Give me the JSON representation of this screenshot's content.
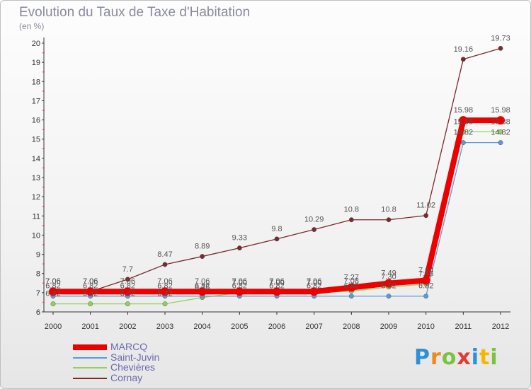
{
  "title": "Evolution du Taux de Taxe d'Habitation",
  "subtitle": "(en %)",
  "logo": {
    "text": "Proxiti",
    "colors": [
      "#2f8fd8",
      "#f08a1c",
      "#7cc242",
      "#e23b2f",
      "#2f8fd8",
      "#f5b800",
      "#7cc242"
    ]
  },
  "chart_data": {
    "type": "line",
    "title": "Evolution du Taux de Taxe d'Habitation",
    "ylabel": "(en %)",
    "xlabel": "",
    "x": [
      "2000",
      "2001",
      "2002",
      "2003",
      "2004",
      "2005",
      "2006",
      "2007",
      "2008",
      "2009",
      "2010",
      "2011",
      "2012"
    ],
    "ylim": [
      6,
      20
    ],
    "yticks": [
      "6",
      "7",
      "8",
      "9",
      "10",
      "11",
      "12",
      "13",
      "14",
      "15",
      "16",
      "17",
      "18",
      "19",
      "20"
    ],
    "grid": false,
    "legend": "bottom-left",
    "series": [
      {
        "name": "MARCQ",
        "color": "#ee0000",
        "values": [
          7.06,
          7.06,
          7.06,
          7.06,
          7.06,
          7.06,
          7.06,
          7.06,
          7.27,
          7.49,
          7.64,
          15.98,
          15.98
        ],
        "labels": [
          "7.06",
          "7.06",
          "7.06",
          "7.06",
          "7.06",
          "7.06",
          "7.06",
          "7.06",
          "7.27",
          "7.49",
          "7.64",
          "15.98",
          "15.98"
        ]
      },
      {
        "name": "Saint-Juvin",
        "color": "#5b9bd5",
        "values": [
          6.82,
          6.82,
          6.82,
          6.82,
          6.82,
          6.82,
          6.82,
          6.82,
          6.82,
          6.82,
          6.82,
          14.82,
          14.82
        ],
        "labels": [
          "6.82",
          "6.82",
          "6.82",
          "6.82",
          "6.82",
          "6.82",
          "6.82",
          "6.82",
          "6.82",
          "6.82",
          "6.82",
          "14.82",
          "14.82"
        ]
      },
      {
        "name": "Chevières",
        "color": "#8ed45b",
        "values": [
          6.42,
          6.42,
          6.42,
          6.42,
          6.75,
          7.0,
          7.0,
          7.0,
          7.08,
          7.3,
          7.45,
          15.38,
          15.38
        ],
        "labels": [
          "6.42",
          "6.42",
          "6.42",
          "6.42",
          "6.75",
          "7.00",
          "7.00",
          "7.00",
          "7.08",
          "7.30",
          "7.45",
          "15.38",
          "15.38"
        ]
      },
      {
        "name": "Cornay",
        "color": "#7a2a2a",
        "values": [
          7.06,
          7.06,
          7.7,
          8.47,
          8.89,
          9.33,
          9.8,
          10.29,
          10.8,
          10.8,
          11.02,
          19.16,
          19.73
        ],
        "labels": [
          "7.06",
          "7.06",
          "7.7",
          "8.47",
          "8.89",
          "9.33",
          "9.8",
          "10.29",
          "10.8",
          "10.8",
          "11.02",
          "19.16",
          "19.73"
        ]
      }
    ]
  }
}
